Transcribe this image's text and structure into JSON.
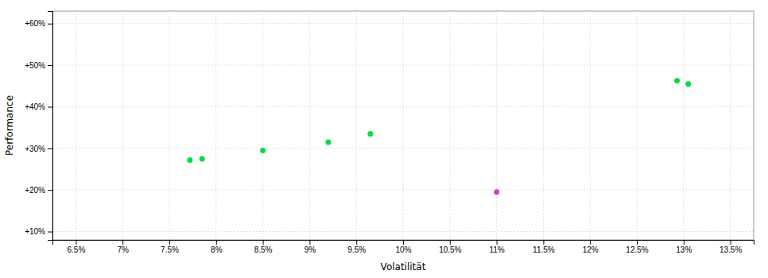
{
  "chart_data": {
    "type": "scatter",
    "xlabel": "Volatilität",
    "ylabel": "Performance",
    "xlim": [
      6.25,
      13.75
    ],
    "ylim": [
      8,
      63
    ],
    "xticks": [
      {
        "value": 6.5,
        "label": "6.5%"
      },
      {
        "value": 7.0,
        "label": "7%"
      },
      {
        "value": 7.5,
        "label": "7.5%"
      },
      {
        "value": 8.0,
        "label": "8%"
      },
      {
        "value": 8.5,
        "label": "8.5%"
      },
      {
        "value": 9.0,
        "label": "9%"
      },
      {
        "value": 9.5,
        "label": "9.5%"
      },
      {
        "value": 10.0,
        "label": "10%"
      },
      {
        "value": 10.5,
        "label": "10.5%"
      },
      {
        "value": 11.0,
        "label": "11%"
      },
      {
        "value": 11.5,
        "label": "11.5%"
      },
      {
        "value": 12.0,
        "label": "12%"
      },
      {
        "value": 12.5,
        "label": "12.5%"
      },
      {
        "value": 13.0,
        "label": "13%"
      },
      {
        "value": 13.5,
        "label": "13.5%"
      }
    ],
    "yticks": [
      {
        "value": 10,
        "label": "+10%"
      },
      {
        "value": 20,
        "label": "+20%"
      },
      {
        "value": 30,
        "label": "+30%"
      },
      {
        "value": 40,
        "label": "+40%"
      },
      {
        "value": 50,
        "label": "+50%"
      },
      {
        "value": 60,
        "label": "+60%"
      }
    ],
    "grid": true,
    "series": [
      {
        "color": "#00dd44",
        "x": [
          7.72,
          7.85,
          8.5,
          9.2,
          9.65,
          12.93,
          13.05
        ],
        "values": [
          27.2,
          27.5,
          29.5,
          31.5,
          33.5,
          46.3,
          45.5
        ]
      },
      {
        "color": "#cc44cc",
        "x": [
          11.0
        ],
        "values": [
          19.5
        ]
      }
    ]
  }
}
